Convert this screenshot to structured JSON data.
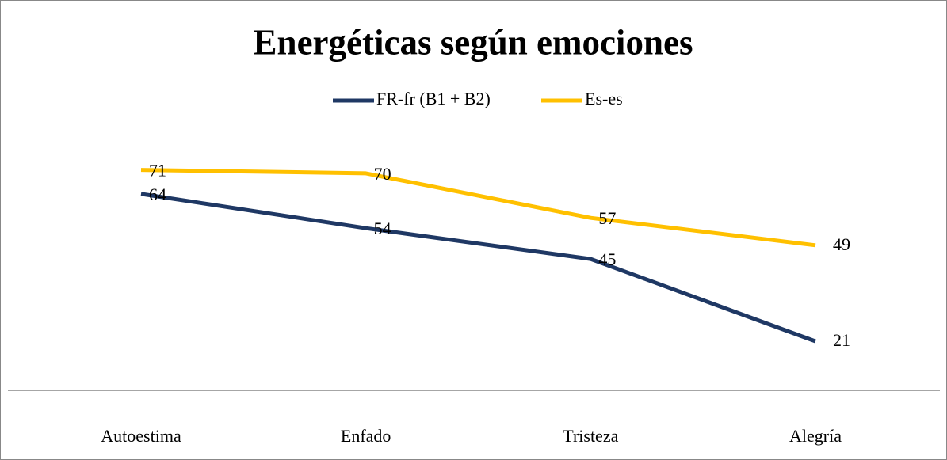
{
  "chart_data": {
    "type": "line",
    "title": "Energéticas según emociones",
    "categories": [
      "Autoestima",
      "Enfado",
      "Tristeza",
      "Alegría"
    ],
    "series": [
      {
        "name": "FR-fr (B1 + B2)",
        "color": "#1f3864",
        "values": [
          64,
          54,
          45,
          21
        ]
      },
      {
        "name": "Es-es",
        "color": "#ffc000",
        "values": [
          71,
          70,
          57,
          49
        ]
      }
    ],
    "ylim": [
      0,
      80
    ],
    "grid": false,
    "legend": "top"
  }
}
